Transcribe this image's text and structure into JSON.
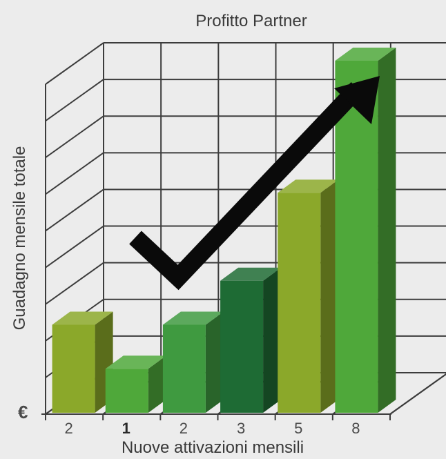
{
  "chart_data": {
    "type": "bar",
    "title": "Profitto Partner",
    "xlabel": "Nuove attivazioni mensili",
    "ylabel": "Guadagno mensile totale",
    "currency_symbol": "€",
    "categories": [
      "2",
      "1",
      "2",
      "3",
      "5",
      "8"
    ],
    "values": [
      2,
      1,
      2,
      3,
      5,
      8
    ],
    "bold_category_index": 1,
    "ylim": [
      0,
      8
    ],
    "grid": true,
    "legend": "none",
    "trend_marker": "checkmark arrow rising to the right",
    "colors": {
      "background": "#ececec",
      "grid": "#3c3c3c",
      "bars": [
        "#8ba82a",
        "#4fa83a",
        "#3f9a40",
        "#1e6b34",
        "#8ba82a",
        "#4fa83a"
      ],
      "arrow": "#0a0a0a"
    }
  }
}
